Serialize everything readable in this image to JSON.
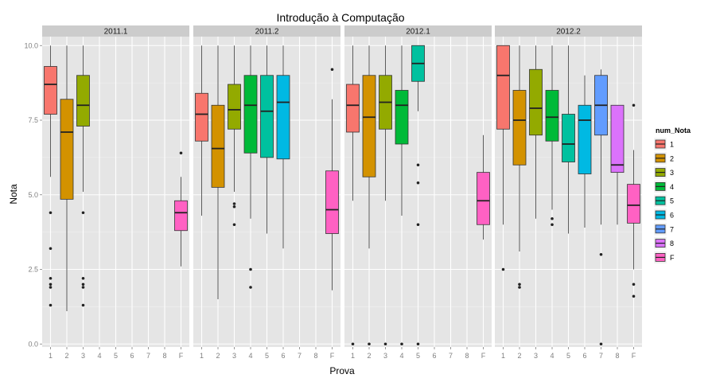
{
  "chart_data": {
    "type": "boxplot",
    "title": "Introdução à Computação",
    "xlabel": "Prova",
    "ylabel": "Nota",
    "ylim": [
      -0.1,
      10.3
    ],
    "y_ticks": [
      "0.0",
      "2.5",
      "5.0",
      "7.5",
      "10.0"
    ],
    "y_tick_values": [
      0,
      2.5,
      5,
      7.5,
      10
    ],
    "categories": [
      "1",
      "2",
      "3",
      "4",
      "5",
      "6",
      "7",
      "8",
      "F"
    ],
    "legend": {
      "title": "num_Nota",
      "position": "right",
      "items": [
        {
          "label": "1",
          "color": "#F8766D"
        },
        {
          "label": "2",
          "color": "#D39200"
        },
        {
          "label": "3",
          "color": "#93AA00"
        },
        {
          "label": "4",
          "color": "#00BA38"
        },
        {
          "label": "5",
          "color": "#00C19F"
        },
        {
          "label": "6",
          "color": "#00B9E3"
        },
        {
          "label": "7",
          "color": "#619CFF"
        },
        {
          "label": "8",
          "color": "#DB72FB"
        },
        {
          "label": "F",
          "color": "#FF61C3"
        }
      ]
    },
    "panels": [
      {
        "label": "2011.1",
        "boxes": [
          {
            "cat": "1",
            "min": 5.6,
            "q1": 7.7,
            "median": 8.7,
            "q3": 9.3,
            "max": 10.0,
            "outliers": [
              4.4,
              3.2,
              2.2,
              2.0,
              1.9,
              1.3
            ]
          },
          {
            "cat": "2",
            "min": 1.1,
            "q1": 4.85,
            "median": 7.1,
            "q3": 8.2,
            "max": 10.0,
            "outliers": []
          },
          {
            "cat": "3",
            "min": 5.1,
            "q1": 7.3,
            "median": 8.0,
            "q3": 9.0,
            "max": 10.0,
            "outliers": [
              4.4,
              2.2,
              2.0,
              1.9,
              1.3
            ]
          },
          {
            "cat": "F",
            "min": 2.6,
            "q1": 3.8,
            "median": 4.4,
            "q3": 4.8,
            "max": 5.6,
            "outliers": [
              6.4
            ]
          }
        ]
      },
      {
        "label": "2011.2",
        "boxes": [
          {
            "cat": "1",
            "min": 4.3,
            "q1": 6.8,
            "median": 7.7,
            "q3": 8.4,
            "max": 10.0,
            "outliers": []
          },
          {
            "cat": "2",
            "min": 1.5,
            "q1": 5.25,
            "median": 6.55,
            "q3": 8.0,
            "max": 10.0,
            "outliers": []
          },
          {
            "cat": "3",
            "min": 5.1,
            "q1": 7.2,
            "median": 7.85,
            "q3": 8.7,
            "max": 10.0,
            "outliers": [
              4.7,
              4.6,
              4.0
            ]
          },
          {
            "cat": "4",
            "min": 4.2,
            "q1": 6.4,
            "median": 8.0,
            "q3": 9.0,
            "max": 10.0,
            "outliers": [
              2.5,
              1.9
            ]
          },
          {
            "cat": "5",
            "min": 3.7,
            "q1": 6.25,
            "median": 7.8,
            "q3": 9.0,
            "max": 10.0,
            "outliers": []
          },
          {
            "cat": "6",
            "min": 3.2,
            "q1": 6.2,
            "median": 8.1,
            "q3": 9.0,
            "max": 10.0,
            "outliers": []
          },
          {
            "cat": "F",
            "min": 1.8,
            "q1": 3.7,
            "median": 4.5,
            "q3": 5.8,
            "max": 8.2,
            "outliers": [
              9.2
            ]
          }
        ]
      },
      {
        "label": "2012.1",
        "boxes": [
          {
            "cat": "1",
            "min": 4.8,
            "q1": 7.1,
            "median": 8.0,
            "q3": 8.7,
            "max": 10.0,
            "outliers": [
              0.0
            ]
          },
          {
            "cat": "2",
            "min": 3.2,
            "q1": 5.6,
            "median": 7.6,
            "q3": 9.0,
            "max": 10.0,
            "outliers": [
              0.0
            ]
          },
          {
            "cat": "3",
            "min": 4.8,
            "q1": 7.2,
            "median": 8.1,
            "q3": 9.0,
            "max": 10.0,
            "outliers": [
              0.0
            ]
          },
          {
            "cat": "4",
            "min": 4.3,
            "q1": 6.7,
            "median": 8.0,
            "q3": 8.5,
            "max": 10.0,
            "outliers": [
              0.0
            ]
          },
          {
            "cat": "5",
            "min": 7.8,
            "q1": 8.8,
            "median": 9.4,
            "q3": 10.0,
            "max": 10.0,
            "outliers": [
              6.0,
              5.4,
              4.0,
              0.0
            ]
          },
          {
            "cat": "F",
            "min": 3.5,
            "q1": 4.0,
            "median": 4.8,
            "q3": 5.75,
            "max": 7.0,
            "outliers": []
          }
        ]
      },
      {
        "label": "2012.2",
        "boxes": [
          {
            "cat": "1",
            "min": 4.0,
            "q1": 7.2,
            "median": 9.0,
            "q3": 10.0,
            "max": 10.0,
            "outliers": [
              2.5
            ]
          },
          {
            "cat": "2",
            "min": 3.1,
            "q1": 6.0,
            "median": 7.5,
            "q3": 8.5,
            "max": 10.0,
            "outliers": [
              2.0,
              1.9
            ]
          },
          {
            "cat": "3",
            "min": 4.2,
            "q1": 7.0,
            "median": 7.9,
            "q3": 9.2,
            "max": 10.0,
            "outliers": []
          },
          {
            "cat": "4",
            "min": 4.5,
            "q1": 6.8,
            "median": 7.6,
            "q3": 8.5,
            "max": 10.0,
            "outliers": [
              4.2,
              4.0
            ]
          },
          {
            "cat": "5",
            "min": 3.7,
            "q1": 6.1,
            "median": 6.7,
            "q3": 7.7,
            "max": 10.0,
            "outliers": []
          },
          {
            "cat": "6",
            "min": 3.9,
            "q1": 5.7,
            "median": 7.5,
            "q3": 8.0,
            "max": 9.0,
            "outliers": []
          },
          {
            "cat": "7",
            "min": 4.0,
            "q1": 7.0,
            "median": 8.0,
            "q3": 9.0,
            "max": 9.2,
            "outliers": [
              3.0,
              0.0
            ]
          },
          {
            "cat": "8",
            "min": 4.0,
            "q1": 5.75,
            "median": 6.0,
            "q3": 8.0,
            "max": 8.0,
            "outliers": []
          },
          {
            "cat": "F",
            "min": 2.5,
            "q1": 4.05,
            "median": 4.65,
            "q3": 5.35,
            "max": 6.5,
            "outliers": [
              8.0,
              2.0,
              1.6
            ]
          }
        ]
      }
    ]
  }
}
